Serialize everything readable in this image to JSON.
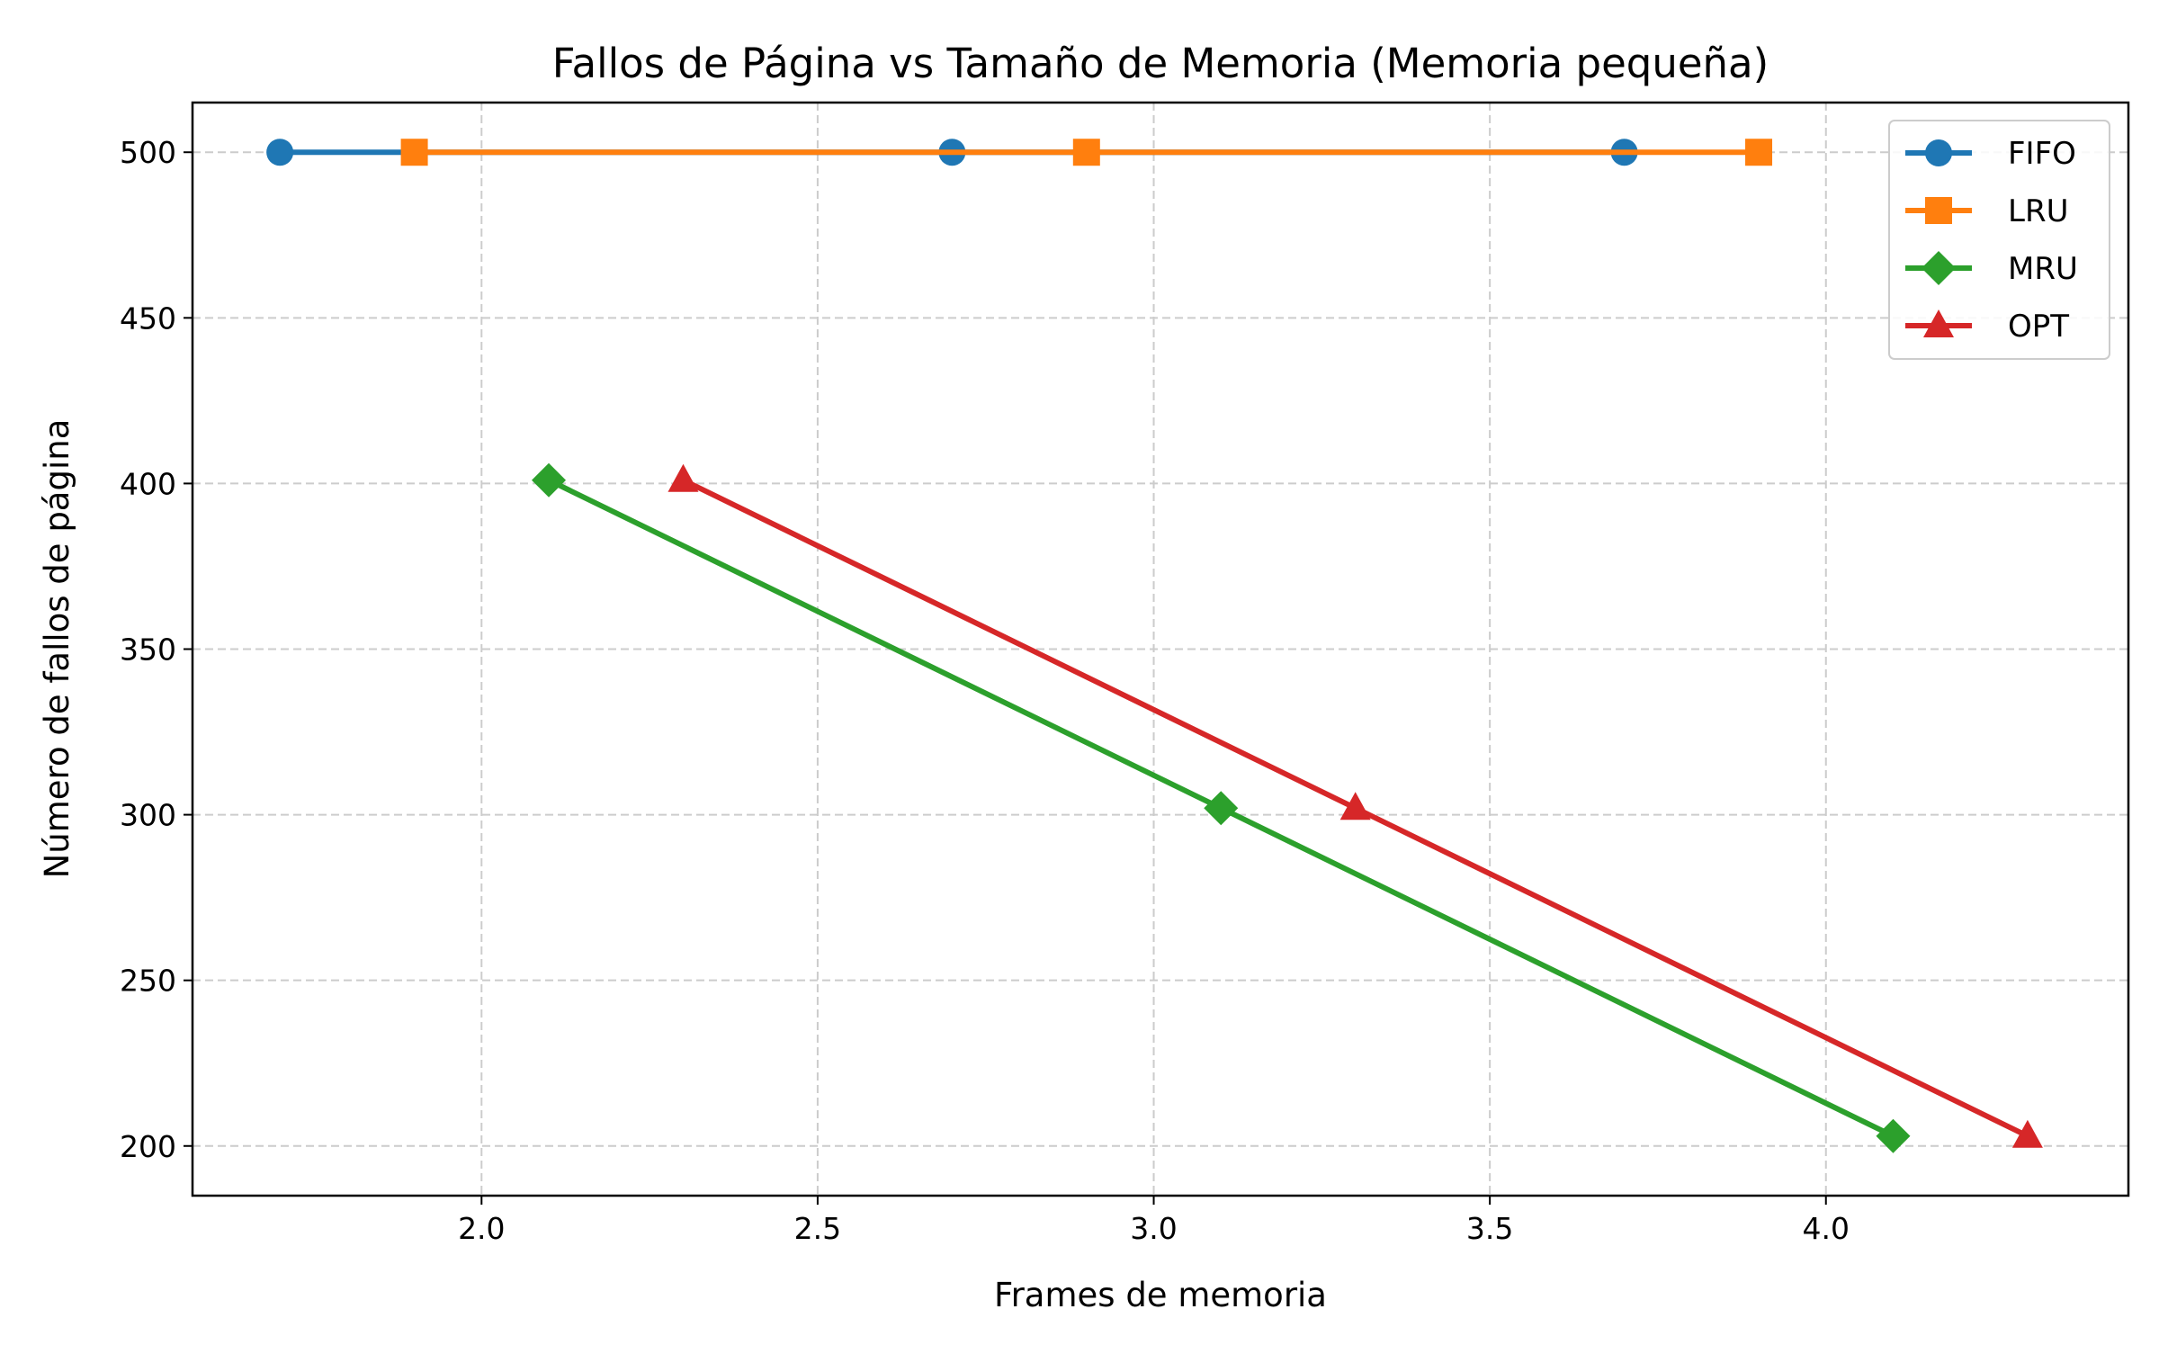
{
  "chart_data": {
    "type": "line",
    "title": "Fallos de Página vs Tamaño de Memoria (Memoria pequeña)",
    "xlabel": "Frames de memoria",
    "ylabel": "Número de fallos de página",
    "xlim": [
      1.57,
      4.45
    ],
    "ylim": [
      185,
      515
    ],
    "x_ticks": [
      2.0,
      2.5,
      3.0,
      3.5,
      4.0
    ],
    "x_tick_labels": [
      "2.0",
      "2.5",
      "3.0",
      "3.5",
      "4.0"
    ],
    "y_ticks": [
      200,
      250,
      300,
      350,
      400,
      450,
      500
    ],
    "y_tick_labels": [
      "200",
      "250",
      "300",
      "350",
      "400",
      "450",
      "500"
    ],
    "grid": true,
    "legend_position": "top-right",
    "series": [
      {
        "name": "FIFO",
        "color": "#1f77b4",
        "marker": "circle",
        "x": [
          1.7,
          2.7,
          3.7
        ],
        "y": [
          500,
          500,
          500
        ]
      },
      {
        "name": "LRU",
        "color": "#ff7f0e",
        "marker": "square",
        "x": [
          1.9,
          2.9,
          3.9
        ],
        "y": [
          500,
          500,
          500
        ]
      },
      {
        "name": "MRU",
        "color": "#2ca02c",
        "marker": "diamond",
        "x": [
          2.1,
          3.1,
          4.1
        ],
        "y": [
          401,
          302,
          203
        ]
      },
      {
        "name": "OPT",
        "color": "#d62728",
        "marker": "triangle",
        "x": [
          2.3,
          3.3,
          4.3
        ],
        "y": [
          401,
          302,
          203
        ]
      }
    ]
  }
}
